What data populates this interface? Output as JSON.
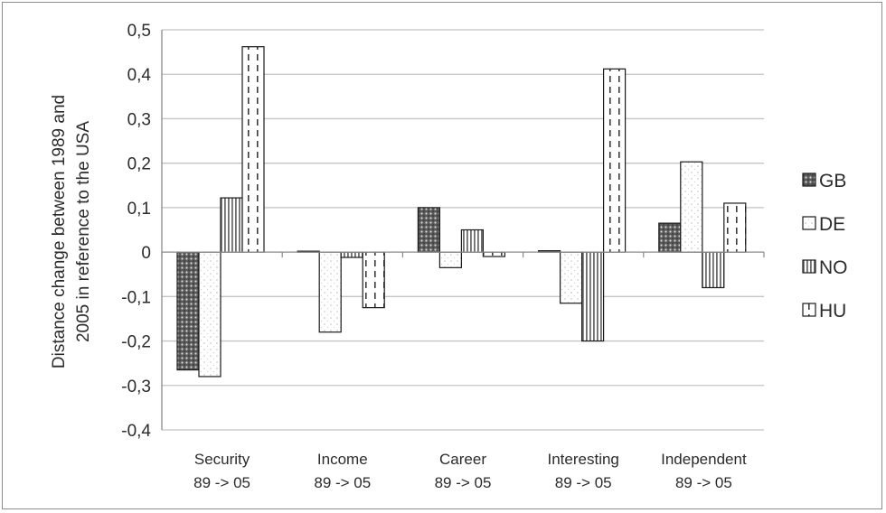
{
  "chart_data": {
    "type": "bar",
    "ylabel_lines": [
      "Distance change between 1989 and",
      "2005 in reference to the USA"
    ],
    "ylim": [
      -0.4,
      0.5
    ],
    "yticks": [
      {
        "value": 0.5,
        "label": "0,5"
      },
      {
        "value": 0.4,
        "label": "0,4"
      },
      {
        "value": 0.3,
        "label": "0,3"
      },
      {
        "value": 0.2,
        "label": "0,2"
      },
      {
        "value": 0.1,
        "label": "0,1"
      },
      {
        "value": 0.0,
        "label": "0"
      },
      {
        "value": -0.1,
        "label": "-0,1"
      },
      {
        "value": -0.2,
        "label": "-0,2"
      },
      {
        "value": -0.3,
        "label": "-0,3"
      },
      {
        "value": -0.4,
        "label": "-0,4"
      }
    ],
    "grid": true,
    "legend_position": "right",
    "categories": [
      {
        "line1": "Security",
        "line2": "89 -> 05"
      },
      {
        "line1": "Income",
        "line2": "89 -> 05"
      },
      {
        "line1": "Career",
        "line2": "89 -> 05"
      },
      {
        "line1": "Interesting",
        "line2": "89 -> 05"
      },
      {
        "line1": "Independent",
        "line2": "89 -> 05"
      }
    ],
    "series": [
      {
        "name": "GB",
        "pattern": "dots-dark",
        "values": [
          -0.265,
          0.002,
          0.1,
          0.003,
          0.065
        ]
      },
      {
        "name": "DE",
        "pattern": "dots-light",
        "values": [
          -0.28,
          -0.18,
          -0.035,
          -0.115,
          0.203
        ]
      },
      {
        "name": "NO",
        "pattern": "vertical-lines",
        "values": [
          0.122,
          -0.012,
          0.05,
          -0.2,
          -0.08
        ]
      },
      {
        "name": "HU",
        "pattern": "dashed-lines",
        "values": [
          0.462,
          -0.125,
          -0.01,
          0.412,
          0.11
        ]
      }
    ]
  }
}
